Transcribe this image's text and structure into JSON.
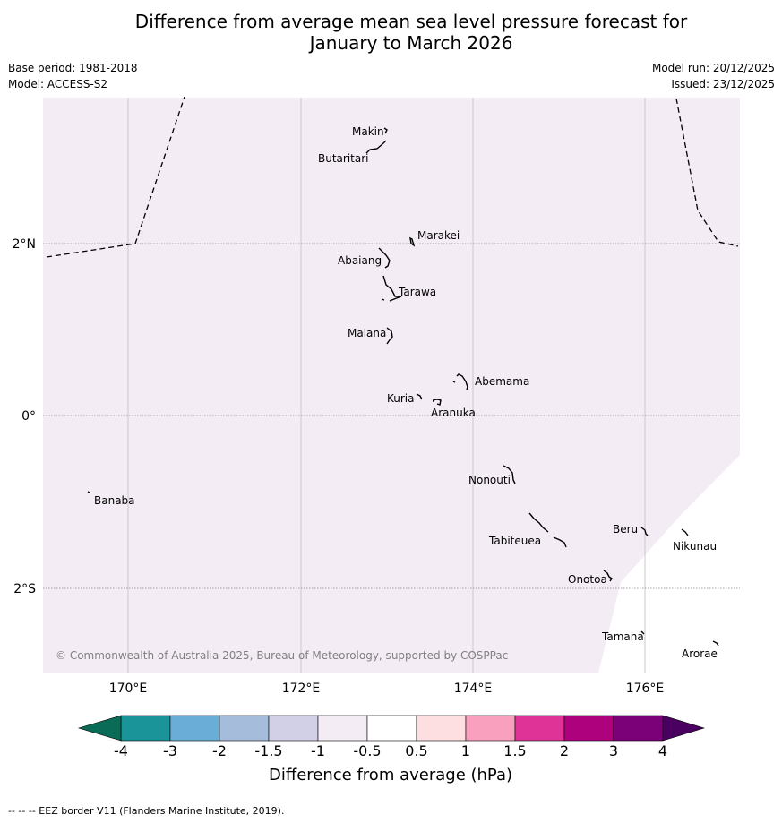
{
  "title": {
    "line1": "Difference from average mean sea level pressure forecast for",
    "line2": "January to March 2026"
  },
  "meta": {
    "base_period": "Base period: 1981-2018",
    "model": "Model: ACCESS-S2",
    "model_run": "Model run: 20/12/2025",
    "issued": "Issued: 23/12/2025"
  },
  "map": {
    "lat_labels": [
      "2°N",
      "0°",
      "2°S"
    ],
    "lon_labels": [
      "170°E",
      "172°E",
      "174°E",
      "176°E"
    ],
    "copyright": "© Commonwealth of Australia 2025, Bureau of Meteorology, supported by COSPPac",
    "fill_color": "#f4ecf5",
    "islands": [
      "Makin",
      "Butaritari",
      "Marakei",
      "Abaiang",
      "Tarawa",
      "Maiana",
      "Abemama",
      "Kuria",
      "Aranuka",
      "Banaba",
      "Nonouti",
      "Beru",
      "Nikunau",
      "Tabiteuea",
      "Onotoa",
      "Tamana",
      "Arorae"
    ]
  },
  "legend": {
    "title": "Difference from average (hPa)",
    "ticks": [
      "-4",
      "-3",
      "-2",
      "-1.5",
      "-1",
      "-0.5",
      "0.5",
      "1",
      "1.5",
      "2",
      "3",
      "4"
    ],
    "colors": [
      "#1a9399",
      "#6aaed7",
      "#a6bcdb",
      "#d1d0e6",
      "#f4ecf5",
      "#ffffff",
      "#fddfe1",
      "#f9a0bf",
      "#df3398",
      "#ae017e",
      "#7a0177"
    ],
    "low_extend_color": "#0a6b57",
    "high_extend_color": "#4a0060"
  },
  "footer": "--  --  -- EEZ border V11 (Flanders Marine Institute, 2019)."
}
